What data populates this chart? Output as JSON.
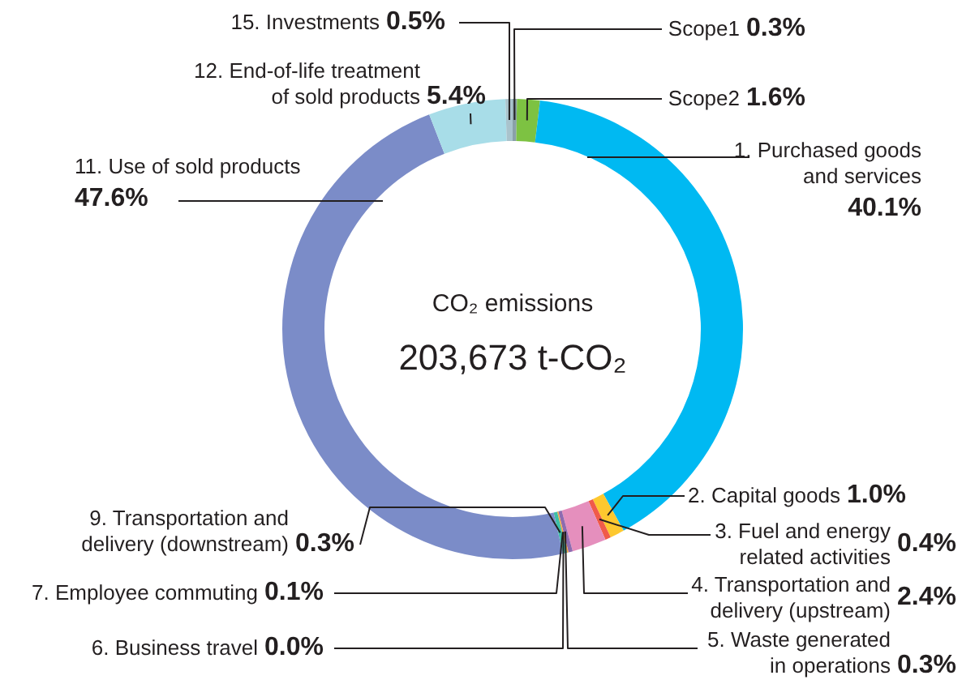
{
  "chart_data": {
    "type": "donut",
    "categories": [
      "Scope1",
      "Scope2",
      "1. Purchased goods\nand services",
      "2. Capital goods",
      "3. Fuel and energy\nrelated activities",
      "4. Transportation and\ndelivery (upstream)",
      "5. Waste generated\nin operations",
      "6. Business travel",
      "7. Employee commuting",
      "9. Transportation and\ndelivery (downstream)",
      "11. Use of sold products",
      "12. End-of-life treatment\nof sold products",
      "15. Investments"
    ],
    "values": [
      0.3,
      1.6,
      40.1,
      1.0,
      0.4,
      2.4,
      0.3,
      0.0,
      0.1,
      0.3,
      47.6,
      5.4,
      0.5
    ],
    "colors": [
      "#8aa0a8",
      "#7dc242",
      "#00b9f2",
      "#fdc82f",
      "#f05a4a",
      "#e58fbd",
      "#8e6bb0",
      "#f7941d",
      "#f7a541",
      "#3dbfa6",
      "#7b8cc8",
      "#a8dde8",
      "#a9c3cc"
    ],
    "value_labels": [
      "0.3%",
      "1.6%",
      "40.1%",
      "1.0%",
      "0.4%",
      "2.4%",
      "0.3%",
      "0.0%",
      "0.1%",
      "0.3%",
      "47.6%",
      "5.4%",
      "0.5%"
    ],
    "annotations": [
      "CO₂ emissions",
      "203,673 t-CO₂"
    ]
  }
}
